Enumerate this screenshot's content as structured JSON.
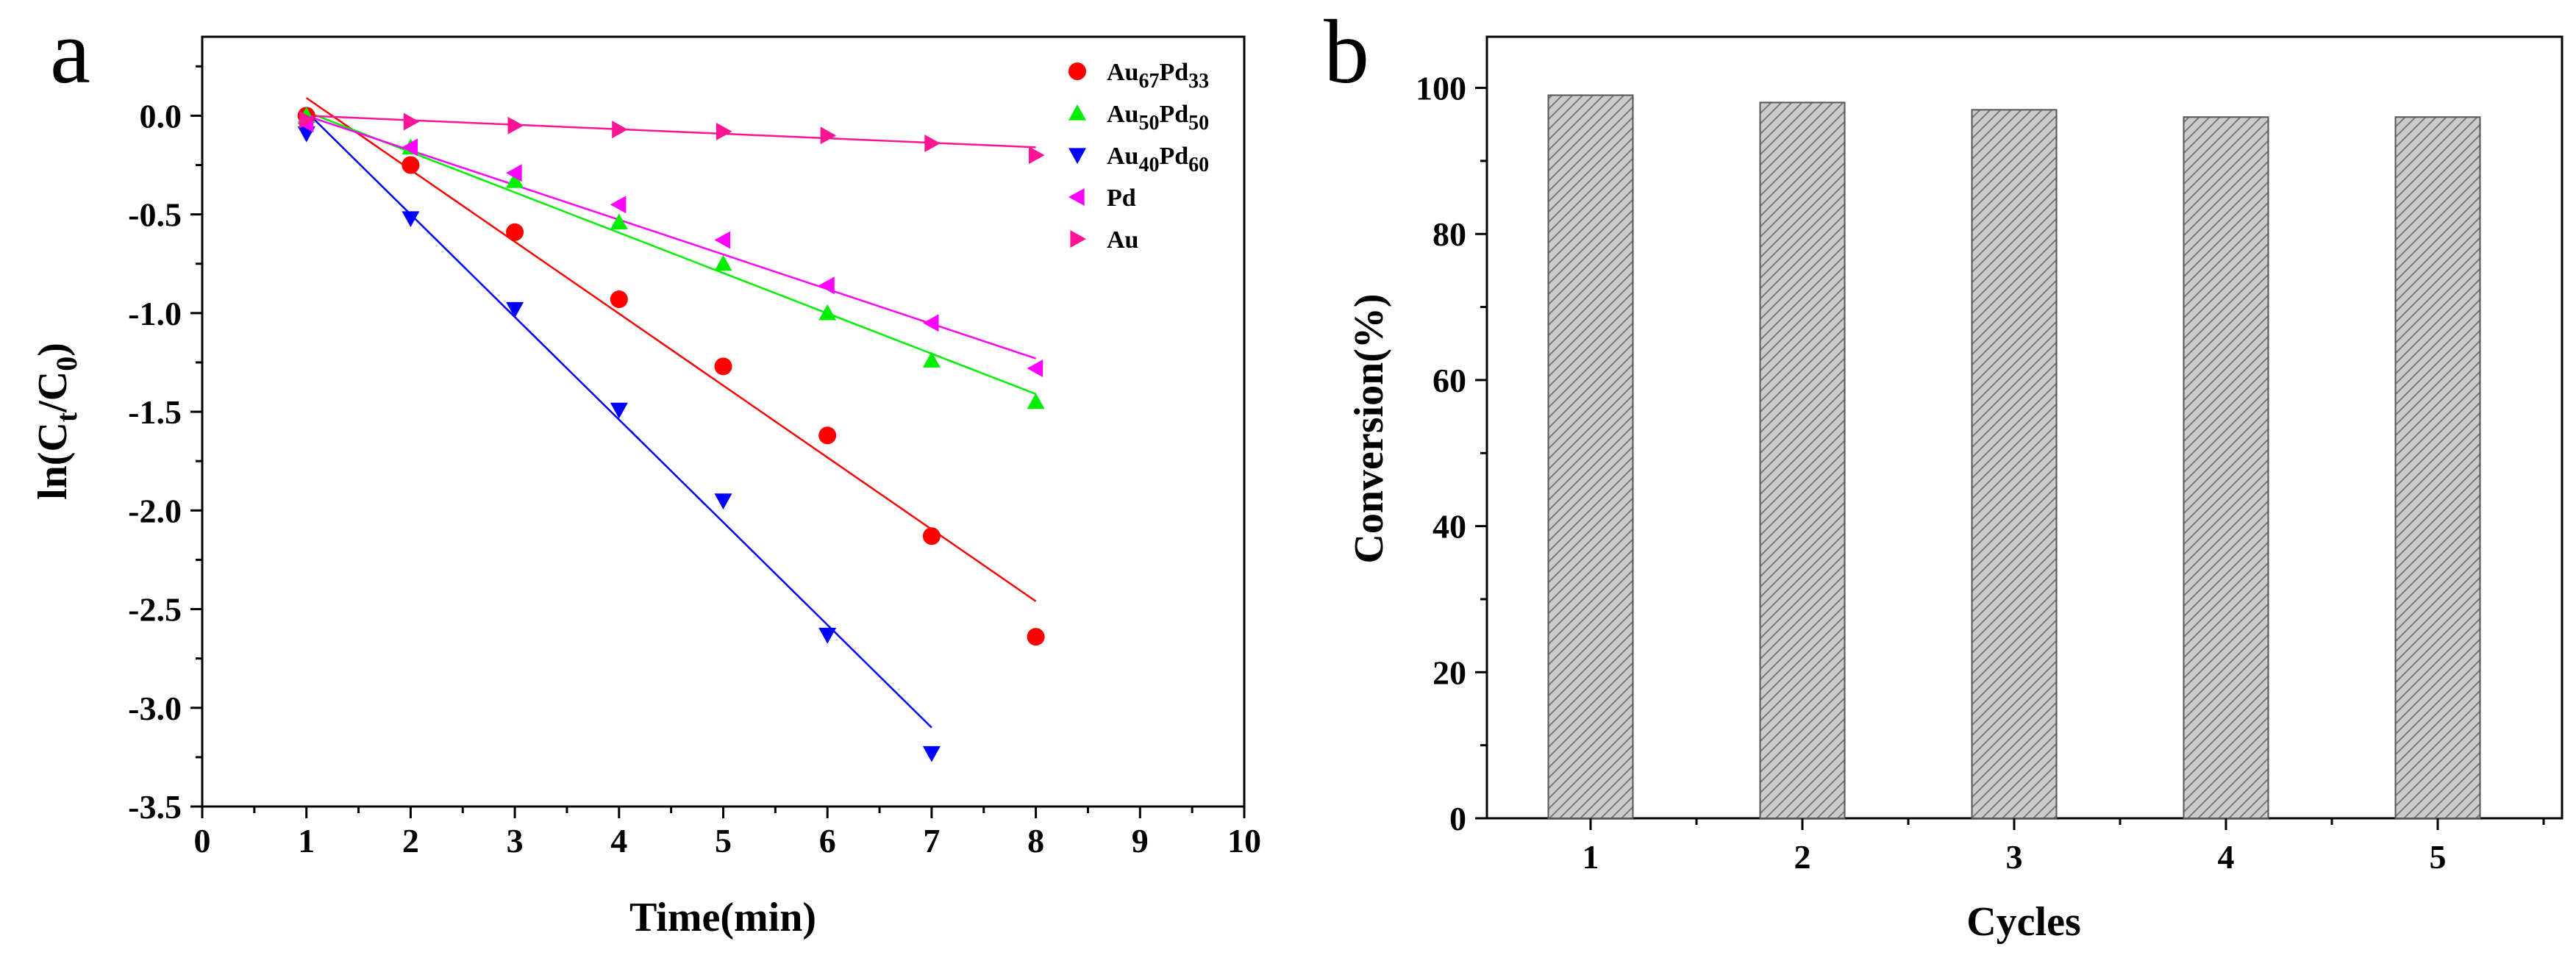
{
  "chart_data": [
    {
      "panel_label": "a",
      "type": "scatter",
      "xlabel": "Time(min)",
      "ylabel_parts": [
        "ln(C",
        "t",
        "/C",
        "0",
        ")"
      ],
      "xlim": [
        0,
        10
      ],
      "ylim": [
        -3.5,
        0.4
      ],
      "x_ticks": [
        "0",
        "1",
        "2",
        "3",
        "4",
        "5",
        "6",
        "7",
        "8",
        "9",
        "10"
      ],
      "y_ticks": [
        "0.0",
        "-0.5",
        "-1.0",
        "-1.5",
        "-2.0",
        "-2.5",
        "-3.0",
        "-3.5"
      ],
      "series": [
        {
          "name": "Au67Pd33",
          "legend_parts": [
            [
              "Au",
              ""
            ],
            [
              "67",
              "sub"
            ],
            [
              "Pd",
              ""
            ],
            [
              "33",
              "sub"
            ]
          ],
          "marker": "circle",
          "color": "#ff0000",
          "x": [
            1,
            2,
            3,
            4,
            5,
            6,
            7,
            8
          ],
          "values": [
            0.0,
            -0.25,
            -0.59,
            -0.93,
            -1.27,
            -1.62,
            -2.13,
            -2.64
          ],
          "fit": [
            [
              1,
              0.09
            ],
            [
              8,
              -2.46
            ]
          ]
        },
        {
          "name": "Au50Pd50",
          "legend_parts": [
            [
              "Au",
              ""
            ],
            [
              "50",
              "sub"
            ],
            [
              "Pd",
              ""
            ],
            [
              "50",
              "sub"
            ]
          ],
          "marker": "triangle-up",
          "color": "#00ee00",
          "x": [
            1,
            2,
            3,
            4,
            5,
            6,
            7,
            8
          ],
          "values": [
            0.0,
            -0.16,
            -0.33,
            -0.54,
            -0.75,
            -1.0,
            -1.24,
            -1.45
          ],
          "fit": [
            [
              1,
              0.02
            ],
            [
              8,
              -1.41
            ]
          ]
        },
        {
          "name": "Au40Pd60",
          "legend_parts": [
            [
              "Au",
              ""
            ],
            [
              "40",
              "sub"
            ],
            [
              "Pd",
              ""
            ],
            [
              "60",
              "sub"
            ]
          ],
          "marker": "triangle-down",
          "color": "#0000ff",
          "x": [
            1,
            2,
            3,
            4,
            5,
            6,
            7
          ],
          "values": [
            -0.09,
            -0.52,
            -0.98,
            -1.49,
            -1.95,
            -2.63,
            -3.23
          ],
          "fit": [
            [
              1,
              0.02
            ],
            [
              7,
              -3.1
            ]
          ]
        },
        {
          "name": "Pd",
          "legend_parts": [
            [
              "Pd",
              ""
            ]
          ],
          "marker": "triangle-left",
          "color": "#ff00ff",
          "x": [
            1,
            2,
            3,
            4,
            5,
            6,
            7,
            8
          ],
          "values": [
            -0.04,
            -0.16,
            -0.29,
            -0.45,
            -0.63,
            -0.86,
            -1.05,
            -1.28
          ],
          "fit": [
            [
              1,
              0.0
            ],
            [
              8,
              -1.23
            ]
          ]
        },
        {
          "name": "Au",
          "legend_parts": [
            [
              "Au",
              ""
            ]
          ],
          "marker": "triangle-right",
          "color": "#ff1493",
          "x": [
            1,
            2,
            3,
            4,
            5,
            6,
            7,
            8
          ],
          "values": [
            -0.02,
            -0.03,
            -0.05,
            -0.07,
            -0.08,
            -0.1,
            -0.14,
            -0.2
          ],
          "fit": [
            [
              1,
              0.0
            ],
            [
              8,
              -0.16
            ]
          ]
        }
      ]
    },
    {
      "panel_label": "b",
      "type": "bar",
      "xlabel": "Cycles",
      "ylabel": "Conversion(%)",
      "categories": [
        "1",
        "2",
        "3",
        "4",
        "5"
      ],
      "values": [
        99,
        98,
        97,
        96,
        96
      ],
      "ylim": [
        0,
        107
      ],
      "y_ticks": [
        "0",
        "20",
        "40",
        "60",
        "80",
        "100"
      ],
      "bar_color": "#cccccc",
      "hatch_color": "#777777"
    }
  ]
}
